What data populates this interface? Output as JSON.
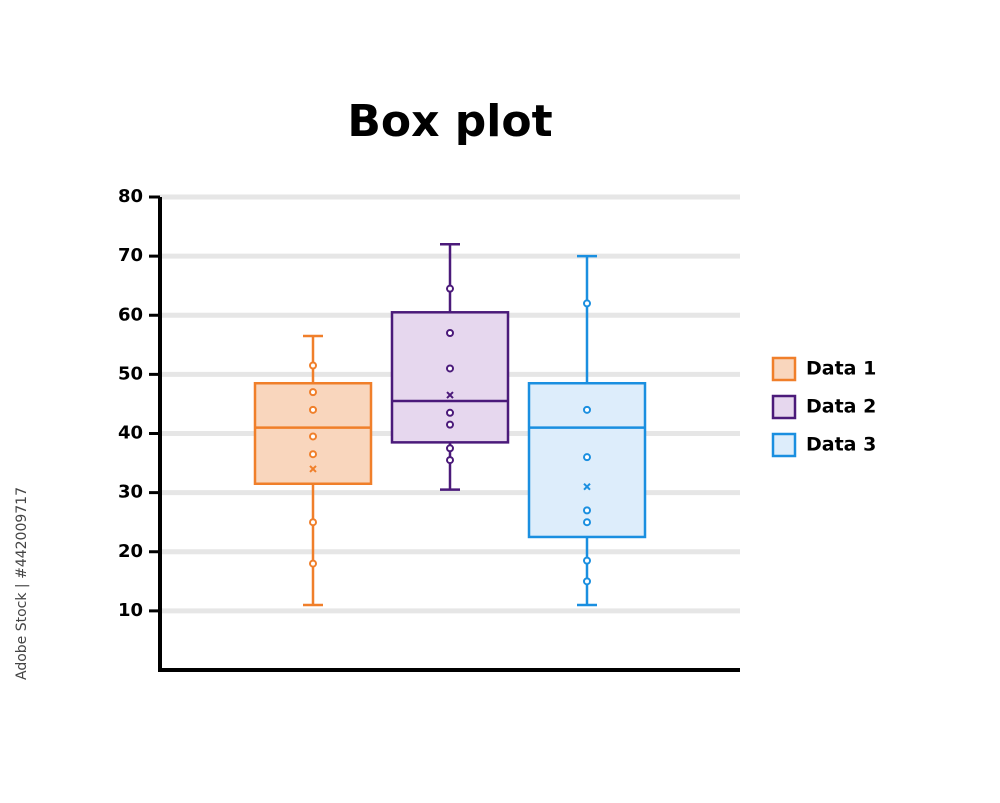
{
  "chart_data": {
    "type": "box",
    "title": "Box plot",
    "ylim": [
      0,
      80
    ],
    "yticks": [
      10,
      20,
      30,
      40,
      50,
      60,
      70,
      80
    ],
    "grid": true,
    "legend": "right",
    "watermark": "Adobe Stock | #442009717",
    "series": [
      {
        "name": "Data 1",
        "color": "#f07f2a",
        "fill": "#f9d6bd",
        "min": 11,
        "q1": 31.5,
        "median": 41,
        "q3": 48.5,
        "max": 56.5,
        "mean": 34,
        "points": [
          51.5,
          47,
          44,
          39.5,
          36.5,
          25,
          18
        ]
      },
      {
        "name": "Data 2",
        "color": "#4b1a7a",
        "fill": "#e6d7ee",
        "min": 30.5,
        "q1": 38.5,
        "median": 45.5,
        "q3": 60.5,
        "max": 72,
        "mean": 46.5,
        "points": [
          64.5,
          57,
          51,
          43.5,
          41.5,
          37.5,
          35.5
        ]
      },
      {
        "name": "Data 3",
        "color": "#1a8fe0",
        "fill": "#ddedfb",
        "min": 11,
        "q1": 22.5,
        "median": 41,
        "q3": 48.5,
        "max": 70,
        "mean": 31,
        "points": [
          62,
          44,
          36,
          27,
          25,
          18.5,
          15
        ]
      }
    ]
  }
}
